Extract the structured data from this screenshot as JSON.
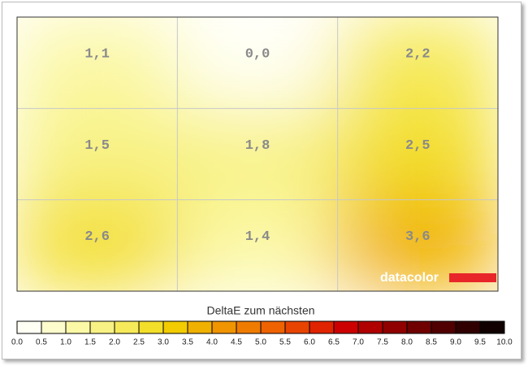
{
  "chart_data": {
    "type": "heatmap",
    "title": "DeltaE zum nächsten",
    "watermark": "datacolor",
    "values": [
      [
        1.1,
        0.0,
        2.2
      ],
      [
        1.5,
        1.8,
        2.5
      ],
      [
        2.6,
        1.4,
        3.6
      ]
    ],
    "value_labels": [
      [
        "1,1",
        "0,0",
        "2,2"
      ],
      [
        "1,5",
        "1,8",
        "2,5"
      ],
      [
        "2,6",
        "1,4",
        "3,6"
      ]
    ],
    "grid": true,
    "colorbar_ticks": [
      {
        "value": 0,
        "label": "0.0"
      },
      {
        "value": 0.5,
        "label": "0.5"
      },
      {
        "value": 1,
        "label": "1.0"
      },
      {
        "value": 1.5,
        "label": "1.5"
      },
      {
        "value": 2,
        "label": "2.0"
      },
      {
        "value": 2.5,
        "label": "2.5"
      },
      {
        "value": 3,
        "label": "3.0"
      },
      {
        "value": 3.5,
        "label": "3.5"
      },
      {
        "value": 4,
        "label": "4.0"
      },
      {
        "value": 4.5,
        "label": "4.5"
      },
      {
        "value": 5,
        "label": "5.0"
      },
      {
        "value": 5.5,
        "label": "5.5"
      },
      {
        "value": 6,
        "label": "6.0"
      },
      {
        "value": 6.5,
        "label": "6.5"
      },
      {
        "value": 7,
        "label": "7.0"
      },
      {
        "value": 7.5,
        "label": "7.5"
      },
      {
        "value": 8,
        "label": "8.0"
      },
      {
        "value": 8.5,
        "label": "8.5"
      },
      {
        "value": 9,
        "label": "9.0"
      },
      {
        "value": 9.5,
        "label": "9.5"
      },
      {
        "value": 10,
        "label": "10.0"
      }
    ],
    "colorbar_colors": [
      "#fffff4",
      "#fdfccc",
      "#fbf8a6",
      "#f8f284",
      "#f6ea5a",
      "#f3de2a",
      "#f2cc00",
      "#f0b000",
      "#f09400",
      "#ef7c00",
      "#ee6200",
      "#e84400",
      "#e02400",
      "#cc0000",
      "#b00000",
      "#900000",
      "#700000",
      "#500000",
      "#300000",
      "#100000"
    ]
  }
}
